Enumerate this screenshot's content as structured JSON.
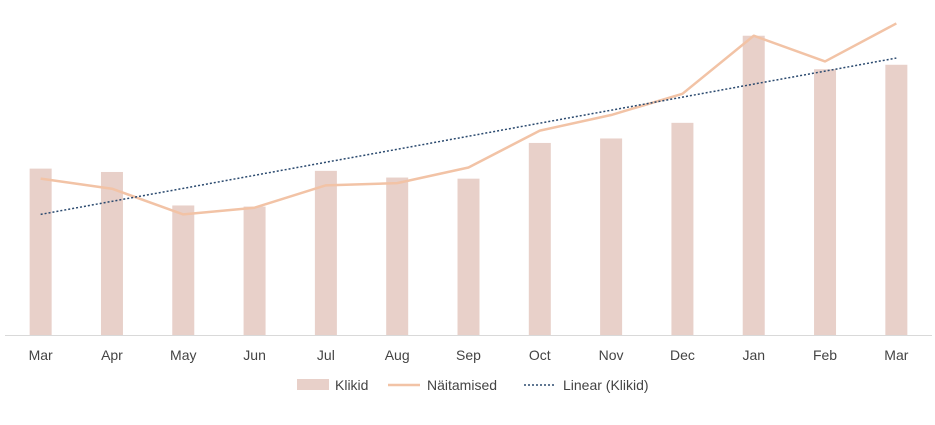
{
  "chart_data": {
    "type": "bar",
    "categories": [
      "Mar",
      "Apr",
      "May",
      "Jun",
      "Jul",
      "Aug",
      "Sep",
      "Oct",
      "Nov",
      "Dec",
      "Jan",
      "Feb",
      "Mar"
    ],
    "series": [
      {
        "name": "Klikid",
        "type": "bar",
        "color": "#e8d0c9",
        "values": [
          149,
          146,
          116,
          115,
          147,
          141,
          140,
          172,
          176,
          190,
          268,
          238,
          242
        ]
      },
      {
        "name": "Näitamised",
        "type": "line",
        "color": "#f2c3a6",
        "values": [
          140,
          131,
          108,
          114,
          134,
          136,
          150,
          183,
          197,
          216,
          268,
          245,
          279
        ]
      },
      {
        "name": "Linear (Klikid)",
        "type": "trendline",
        "color": "#2b4a6f",
        "values": [
          108,
          119.7,
          131.3,
          143,
          154.7,
          166.3,
          178,
          189.7,
          201.3,
          213,
          224.7,
          236.3,
          248
        ]
      }
    ],
    "ylim": [
      0,
      300
    ],
    "grid": false,
    "legend": "bottom"
  }
}
